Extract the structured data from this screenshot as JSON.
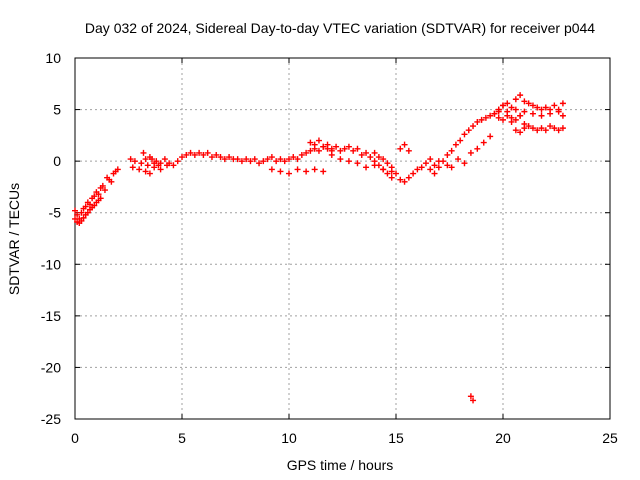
{
  "chart_data": {
    "type": "scatter",
    "title": "Day 032 of 2024, Sidereal Day-to-day VTEC variation (SDTVAR) for receiver p044",
    "xlabel": "GPS time / hours",
    "ylabel": "SDTVAR / TECUs",
    "xlim": [
      0,
      25
    ],
    "ylim": [
      -25,
      10
    ],
    "x_ticks": [
      "0",
      "5",
      "10",
      "15",
      "20",
      "25"
    ],
    "y_ticks": [
      "-25",
      "-20",
      "-15",
      "-10",
      "-5",
      "0",
      "5",
      "10"
    ],
    "grid": true,
    "marker": "plus",
    "color": "#ff0000",
    "series": [
      {
        "name": "SDTVAR",
        "x": [
          0.0,
          0.1,
          0.2,
          0.3,
          0.4,
          0.5,
          0.6,
          0.7,
          0.8,
          0.9,
          1.0,
          1.1,
          1.2,
          1.3,
          1.4,
          1.5,
          1.6,
          1.7,
          1.8,
          1.9,
          2.0,
          0.0,
          0.1,
          0.2,
          0.3,
          0.4,
          0.5,
          0.6,
          0.7,
          0.8,
          0.9,
          1.0,
          1.1,
          1.2,
          2.6,
          2.7,
          2.8,
          3.0,
          3.1,
          3.2,
          3.3,
          3.4,
          3.5,
          3.6,
          3.7,
          3.8,
          3.9,
          4.0,
          4.2,
          4.4,
          4.6,
          4.8,
          5.0,
          5.2,
          5.4,
          5.6,
          5.8,
          6.0,
          6.2,
          6.4,
          6.6,
          6.8,
          7.0,
          7.2,
          7.4,
          7.6,
          7.8,
          8.0,
          8.2,
          8.4,
          8.6,
          8.8,
          3.3,
          3.5,
          3.7,
          4.0,
          4.3,
          9.0,
          9.2,
          9.4,
          9.6,
          9.8,
          10.0,
          10.2,
          10.4,
          10.6,
          10.8,
          11.0,
          11.2,
          11.4,
          11.6,
          11.8,
          12.0,
          9.2,
          9.6,
          10.0,
          10.4,
          10.8,
          11.2,
          11.6,
          11.0,
          11.2,
          11.4,
          11.6,
          11.8,
          12.0,
          12.2,
          12.4,
          12.6,
          12.8,
          13.0,
          13.2,
          13.4,
          13.6,
          13.8,
          14.0,
          14.2,
          14.4,
          14.6,
          14.8,
          12.0,
          12.4,
          12.8,
          13.2,
          13.6,
          14.0,
          14.4,
          14.8,
          14.0,
          14.2,
          14.4,
          14.6,
          14.8,
          15.0,
          15.2,
          15.4,
          15.6,
          15.8,
          16.0,
          16.2,
          16.4,
          16.6,
          16.8,
          17.0,
          15.2,
          15.4,
          15.6,
          16.6,
          16.8,
          17.0,
          17.2,
          17.4,
          17.4,
          17.6,
          17.8,
          18.0,
          18.2,
          18.4,
          18.6,
          18.8,
          19.0,
          19.2,
          19.4,
          19.6,
          19.8,
          17.6,
          17.9,
          18.2,
          18.5,
          18.8,
          19.1,
          19.4,
          19.8,
          20.0,
          20.2,
          20.4,
          20.6,
          20.8,
          21.0,
          21.2,
          21.4,
          21.6,
          21.8,
          22.0,
          22.2,
          22.4,
          22.6,
          22.8,
          19.8,
          20.0,
          20.2,
          20.4,
          20.6,
          20.8,
          21.0,
          21.2,
          21.4,
          21.6,
          21.8,
          22.0,
          22.2,
          22.4,
          22.6,
          22.8,
          19.6,
          19.8,
          20.0,
          20.2,
          20.4,
          20.6,
          20.8,
          21.0,
          21.4,
          21.8,
          22.2,
          22.6,
          22.8,
          20.6,
          20.8,
          21.0,
          18.5,
          18.6
        ],
        "y": [
          -4.8,
          -5.2,
          -5.6,
          -5.0,
          -4.6,
          -4.4,
          -4.0,
          -4.2,
          -3.6,
          -3.4,
          -3.0,
          -3.2,
          -2.6,
          -2.4,
          -2.8,
          -1.6,
          -1.8,
          -2.0,
          -1.2,
          -1.0,
          -0.8,
          -5.6,
          -5.9,
          -6.0,
          -5.8,
          -5.5,
          -5.2,
          -5.0,
          -4.7,
          -4.5,
          -4.3,
          -4.0,
          -3.8,
          -3.6,
          0.2,
          -0.6,
          0.0,
          -0.8,
          -0.2,
          0.8,
          0.2,
          -0.4,
          0.4,
          0.2,
          -0.2,
          0.0,
          -0.4,
          -0.2,
          0.2,
          -0.2,
          -0.4,
          0.0,
          0.4,
          0.6,
          0.8,
          0.6,
          0.8,
          0.6,
          0.8,
          0.4,
          0.6,
          0.4,
          0.2,
          0.4,
          0.2,
          0.2,
          0.0,
          0.2,
          0.0,
          0.2,
          -0.2,
          0.0,
          -1.0,
          -1.2,
          -0.6,
          -0.8,
          -0.4,
          0.2,
          0.4,
          0.0,
          0.2,
          0.0,
          0.2,
          0.4,
          0.2,
          0.6,
          0.8,
          1.0,
          1.2,
          1.0,
          1.4,
          1.2,
          1.0,
          -0.8,
          -1.0,
          -1.2,
          -0.8,
          -1.0,
          -0.8,
          -1.0,
          1.8,
          1.6,
          2.0,
          1.4,
          1.6,
          1.2,
          1.4,
          1.0,
          1.2,
          1.4,
          1.0,
          1.2,
          0.6,
          0.8,
          0.4,
          0.0,
          -0.4,
          -0.8,
          -1.2,
          -1.6,
          0.6,
          0.2,
          0.0,
          -0.2,
          -0.6,
          -0.4,
          -0.8,
          -1.0,
          0.8,
          0.4,
          0.2,
          -0.2,
          -0.6,
          -1.2,
          -1.8,
          -2.0,
          -1.6,
          -1.2,
          -0.8,
          -0.6,
          -0.2,
          0.2,
          -0.4,
          0.0,
          1.2,
          1.6,
          1.0,
          -0.8,
          -1.2,
          -0.6,
          0.0,
          -0.4,
          0.6,
          1.0,
          1.6,
          2.0,
          2.6,
          3.0,
          3.4,
          3.8,
          4.0,
          4.2,
          4.4,
          4.6,
          4.8,
          -0.6,
          0.2,
          -0.2,
          0.8,
          1.2,
          1.8,
          2.4,
          5.0,
          5.4,
          5.6,
          5.2,
          6.0,
          6.4,
          5.8,
          5.6,
          5.4,
          5.2,
          5.0,
          5.2,
          5.0,
          5.4,
          5.0,
          5.6,
          4.2,
          4.0,
          4.4,
          3.8,
          4.0,
          4.4,
          3.6,
          3.4,
          3.2,
          3.0,
          3.2,
          3.0,
          3.4,
          3.2,
          3.0,
          3.2,
          4.6,
          5.0,
          5.4,
          4.8,
          4.2,
          5.0,
          4.4,
          4.8,
          4.6,
          4.4,
          4.6,
          4.8,
          4.4,
          3.0,
          2.8,
          3.2,
          -22.8,
          -23.2
        ]
      }
    ]
  }
}
